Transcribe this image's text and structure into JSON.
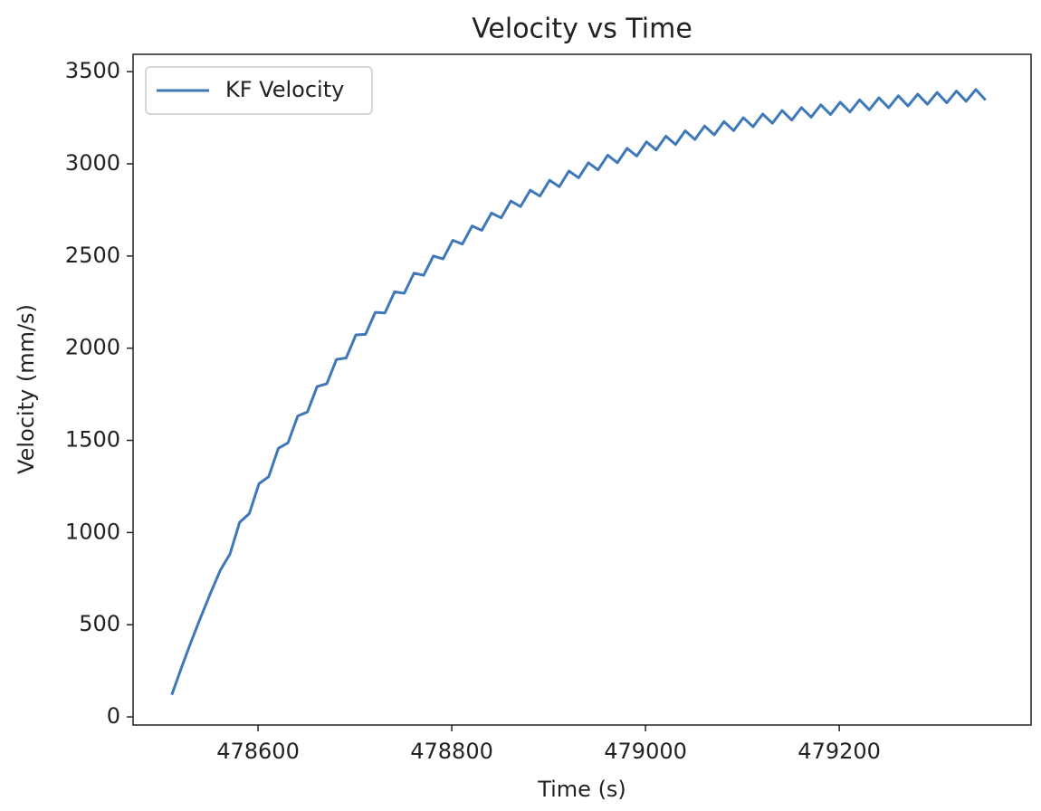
{
  "chart_data": {
    "type": "line",
    "title": "Velocity vs Time",
    "x_label": "Time (s)",
    "y_label": "Velocity (mm/s)",
    "x": [
      478511,
      478521,
      478531,
      478541,
      478551,
      478561,
      478571,
      478581,
      478591,
      478601,
      478611,
      478621,
      478631,
      478641,
      478651,
      478661,
      478671,
      478681,
      478691,
      478701,
      478711,
      478721,
      478731,
      478741,
      478751,
      478761,
      478771,
      478781,
      478791,
      478801,
      478811,
      478821,
      478831,
      478841,
      478851,
      478861,
      478871,
      478881,
      478891,
      478901,
      478911,
      478921,
      478931,
      478941,
      478951,
      478961,
      478971,
      478981,
      478991,
      479001,
      479011,
      479021,
      479031,
      479041,
      479051,
      479061,
      479071,
      479081,
      479091,
      479101,
      479111,
      479121,
      479131,
      479141,
      479151,
      479161,
      479171,
      479181,
      479191,
      479201,
      479211,
      479221,
      479231,
      479241,
      479251,
      479261,
      479271,
      479281,
      479291,
      479301,
      479311,
      479321,
      479331,
      479341,
      479351
    ],
    "series": [
      {
        "name": "KF Velocity",
        "color": "#3f78b8",
        "values": [
          120,
          268,
          409,
          543,
          672,
          795,
          883,
          1055,
          1103,
          1265,
          1303,
          1457,
          1487,
          1632,
          1654,
          1792,
          1807,
          1939,
          1947,
          2072,
          2075,
          2194,
          2191,
          2306,
          2298,
          2407,
          2395,
          2500,
          2484,
          2585,
          2565,
          2663,
          2639,
          2733,
          2707,
          2798,
          2768,
          2857,
          2825,
          2911,
          2876,
          2961,
          2924,
          3006,
          2967,
          3047,
          3006,
          3084,
          3042,
          3119,
          3075,
          3150,
          3105,
          3179,
          3132,
          3205,
          3157,
          3229,
          3180,
          3250,
          3201,
          3270,
          3220,
          3289,
          3237,
          3305,
          3253,
          3320,
          3267,
          3334,
          3281,
          3347,
          3293,
          3358,
          3304,
          3369,
          3314,
          3378,
          3323,
          3387,
          3331,
          3395,
          3339,
          3403,
          3346
        ]
      }
    ],
    "xlim": [
      478471,
      479398
    ],
    "ylim": [
      -44,
      3594
    ],
    "xticks": [
      478600,
      478800,
      479000,
      479200
    ],
    "yticks": [
      0,
      500,
      1000,
      1500,
      2000,
      2500,
      3000,
      3500
    ],
    "grid": false,
    "legend": "upper left"
  }
}
